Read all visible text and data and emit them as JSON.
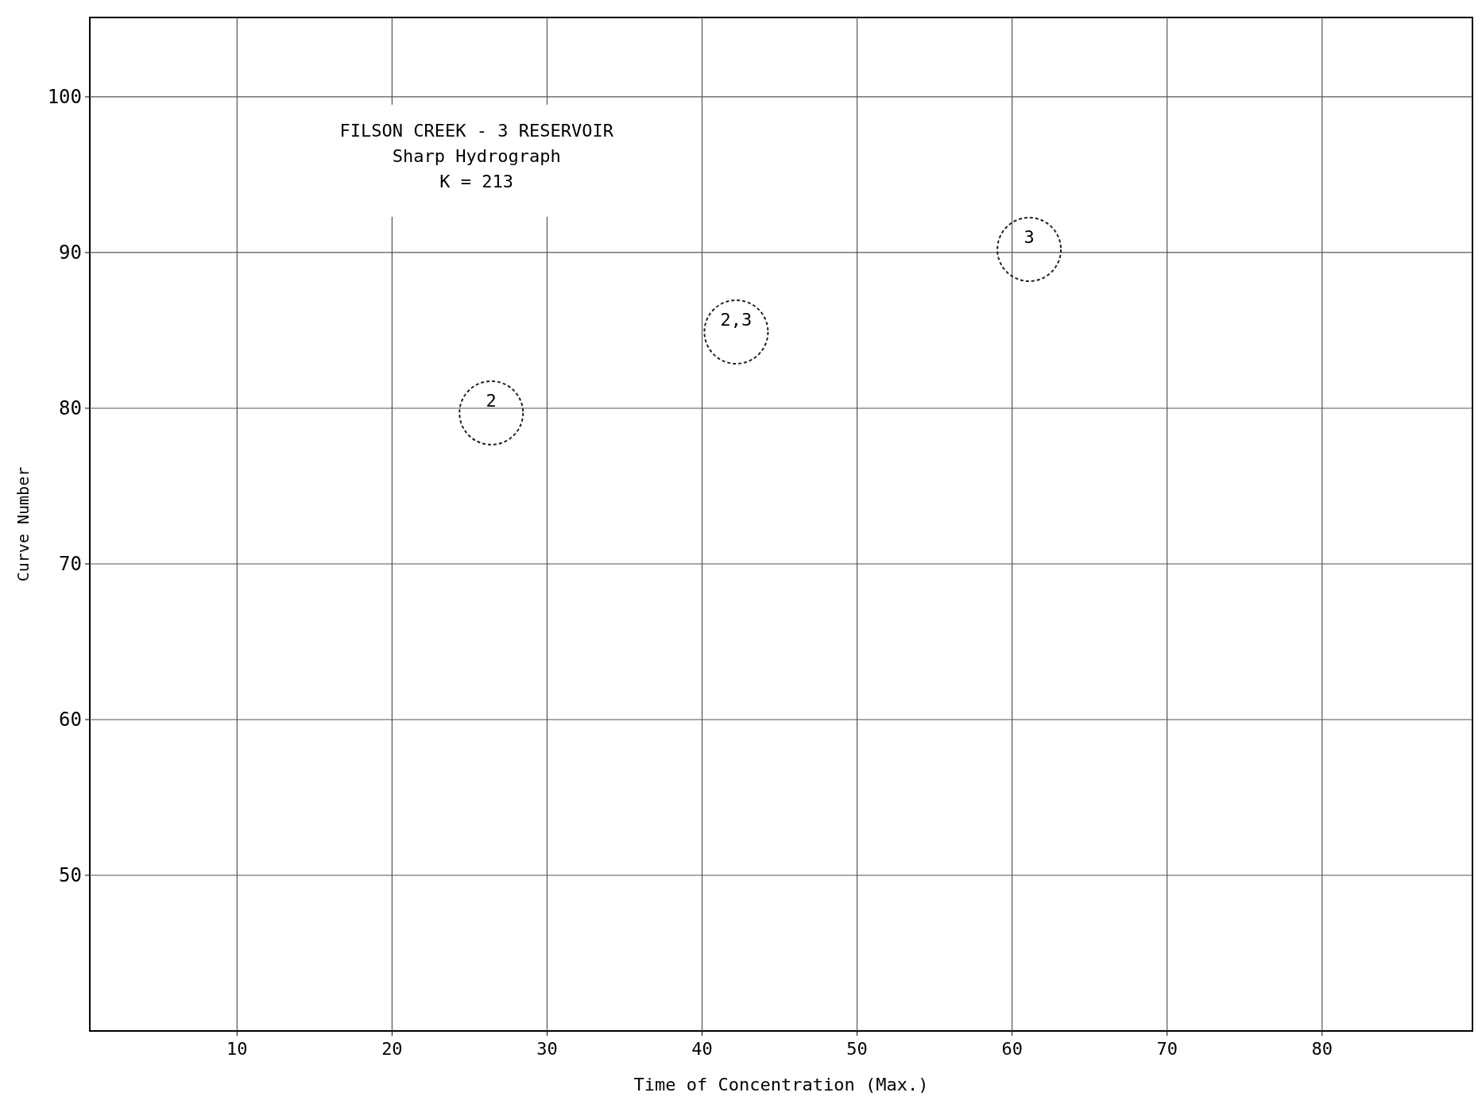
{
  "chart_data": {
    "type": "scatter",
    "title": "FILSON CREEK - 3 RESERVOIR",
    "subtitle": "Sharp Hydrograph",
    "xlabel": "Time of Concentration (Max.)",
    "ylabel": "Curve Number",
    "x": [
      26.4,
      42.2,
      61.1
    ],
    "series": [
      {
        "color": "#222222",
        "values": [
          79.7,
          84.9,
          90.2
        ]
      }
    ],
    "annotations": [
      "K = 213",
      {
        "text": "2",
        "x": 26.4,
        "y": 79.7
      },
      {
        "text": "2,3",
        "x": 42.2,
        "y": 84.9
      },
      {
        "text": "3",
        "x": 61.1,
        "y": 90.2
      }
    ],
    "xlim": [
      0.5,
      89.7
    ],
    "xticks": [
      10,
      20,
      30,
      40,
      50,
      60,
      70,
      80
    ],
    "ylim": [
      40,
      105.1
    ],
    "yticks": [
      50,
      60,
      70,
      80,
      90,
      100
    ],
    "grid": true,
    "marker": "circle"
  }
}
